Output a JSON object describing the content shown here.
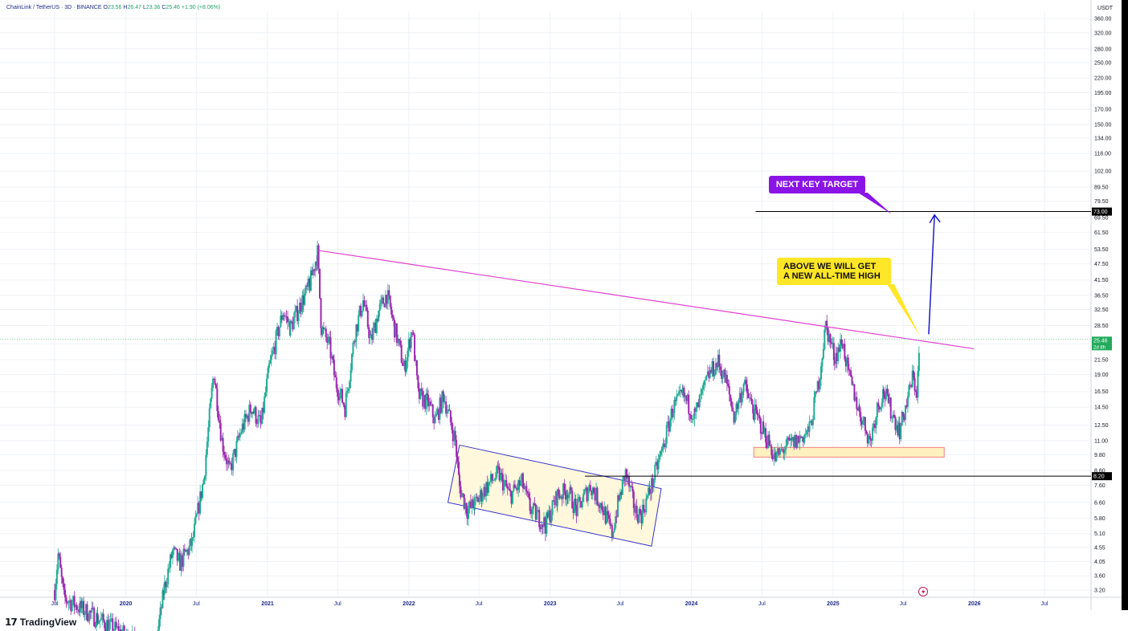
{
  "header": {
    "symbol": "ChainLink / TetherUS · 3D · BINANCE",
    "o_label": "O",
    "o": "23.56",
    "h_label": "H",
    "h": "26.47",
    "l_label": "L",
    "l": "23.36",
    "c_label": "C",
    "c": "25.46",
    "change": "+1.90 (+8.06%)"
  },
  "brand": {
    "mark": "𝟭𝟳",
    "name": "TradingView"
  },
  "annotations": {
    "next_key_target": "NEXT KEY TARGET",
    "ath_line1": "ABOVE WE WILL GET",
    "ath_line2": "A NEW ALL-TIME HIGH",
    "target_price_tag": "73.00",
    "support_price_tag": "8.20",
    "current_price_tag": "25.46",
    "countdown_tag": "2d 8h"
  },
  "colors": {
    "up": "#22ab94",
    "down": "#9c27b0",
    "trendline": "#e040d0",
    "arrow": "#1a1acc",
    "channel_fill": "#fff8dc",
    "channel_stroke": "#3333cc",
    "support_zone_fill": "#fff0c0",
    "support_zone_stroke": "#f08080",
    "callout_purple": "#8a14e6",
    "callout_yellow": "#ffe626"
  },
  "chart_data": {
    "type": "candlestick",
    "symbol": "LINK/USDT",
    "timeframe": "3D",
    "exchange": "BINANCE",
    "y_scale": "log",
    "ylabel": "USDT",
    "y_ticks": [
      3.2,
      3.6,
      4.05,
      4.55,
      5.1,
      5.8,
      6.6,
      7.6,
      8.6,
      9.8,
      11.0,
      12.5,
      14.5,
      16.5,
      19.0,
      21.5,
      24.5,
      28.5,
      32.5,
      36.5,
      41.5,
      47.5,
      53.5,
      61.5,
      69.5,
      79.5,
      89.5,
      102.0,
      118.0,
      134.0,
      150.0,
      170.0,
      195.0,
      220.0,
      250.0,
      280.0,
      320.0,
      360.0
    ],
    "y_tick_labels": [
      "3.20",
      "3.60",
      "4.05",
      "4.55",
      "5.10",
      "5.80",
      "6.60",
      "7.60",
      "8.60",
      "9.80",
      "11.00",
      "12.50",
      "14.50",
      "16.50",
      "19.00",
      "21.50",
      "24.50",
      "28.50",
      "32.50",
      "36.50",
      "41.50",
      "47.50",
      "53.50",
      "61.50",
      "69.50",
      "79.50",
      "89.50",
      "102.00",
      "118.00",
      "134.00",
      "150.00",
      "170.00",
      "195.00",
      "220.00",
      "250.00",
      "280.00",
      "320.00",
      "360.00"
    ],
    "x_ticks": [
      "2019-07-01",
      "2020-01-01",
      "2020-07-01",
      "2021-01-01",
      "2021-07-01",
      "2022-01-01",
      "2022-07-01",
      "2023-01-01",
      "2023-07-01",
      "2024-01-01",
      "2024-07-01",
      "2025-01-01",
      "2025-07-01",
      "2026-01-01",
      "2026-07-01"
    ],
    "x_tick_labels": [
      "Jul",
      "2020",
      "Jul",
      "2021",
      "Jul",
      "2022",
      "Jul",
      "2023",
      "Jul",
      "2024",
      "Jul",
      "2025",
      "Jul",
      "2026",
      "Jul"
    ],
    "price_path": [
      [
        "2019-07-01",
        3.2
      ],
      [
        "2019-07-10",
        4.3
      ],
      [
        "2019-07-25",
        3.0
      ],
      [
        "2020-03-15",
        1.9
      ],
      [
        "2020-04-10",
        3.3
      ],
      [
        "2020-05-01",
        4.4
      ],
      [
        "2020-05-20",
        4.0
      ],
      [
        "2020-06-20",
        4.7
      ],
      [
        "2020-07-20",
        8.0
      ],
      [
        "2020-08-15",
        19.5
      ],
      [
        "2020-09-05",
        11.0
      ],
      [
        "2020-09-25",
        8.5
      ],
      [
        "2020-10-25",
        12.0
      ],
      [
        "2020-11-20",
        14.5
      ],
      [
        "2020-12-15",
        12.5
      ],
      [
        "2021-01-05",
        20.0
      ],
      [
        "2021-02-10",
        32.0
      ],
      [
        "2021-03-01",
        28.0
      ],
      [
        "2021-04-01",
        35.0
      ],
      [
        "2021-04-20",
        40.0
      ],
      [
        "2021-05-10",
        52.0
      ],
      [
        "2021-05-20",
        28.0
      ],
      [
        "2021-06-10",
        24.0
      ],
      [
        "2021-06-25",
        18.0
      ],
      [
        "2021-07-20",
        14.5
      ],
      [
        "2021-08-15",
        27.0
      ],
      [
        "2021-09-05",
        35.0
      ],
      [
        "2021-09-25",
        25.0
      ],
      [
        "2021-10-15",
        32.0
      ],
      [
        "2021-11-05",
        37.0
      ],
      [
        "2021-11-25",
        28.0
      ],
      [
        "2021-12-20",
        20.0
      ],
      [
        "2022-01-10",
        28.0
      ],
      [
        "2022-01-25",
        16.0
      ],
      [
        "2022-02-20",
        15.0
      ],
      [
        "2022-03-10",
        13.0
      ],
      [
        "2022-04-01",
        16.0
      ],
      [
        "2022-05-01",
        11.0
      ],
      [
        "2022-05-12",
        7.5
      ],
      [
        "2022-06-01",
        6.2
      ],
      [
        "2022-06-20",
        6.5
      ],
      [
        "2022-07-20",
        7.5
      ],
      [
        "2022-08-20",
        8.4
      ],
      [
        "2022-09-20",
        7.0
      ],
      [
        "2022-10-20",
        7.8
      ],
      [
        "2022-11-10",
        6.3
      ],
      [
        "2022-12-20",
        5.5
      ],
      [
        "2023-01-20",
        7.0
      ],
      [
        "2023-02-15",
        7.3
      ],
      [
        "2023-03-10",
        6.2
      ],
      [
        "2023-04-15",
        7.6
      ],
      [
        "2023-05-15",
        6.4
      ],
      [
        "2023-06-10",
        5.1
      ],
      [
        "2023-06-25",
        6.5
      ],
      [
        "2023-07-15",
        8.4
      ],
      [
        "2023-08-10",
        6.1
      ],
      [
        "2023-08-25",
        6.0
      ],
      [
        "2023-09-20",
        7.6
      ],
      [
        "2023-10-20",
        10.5
      ],
      [
        "2023-11-15",
        14.5
      ],
      [
        "2023-12-10",
        16.0
      ],
      [
        "2024-01-10",
        13.5
      ],
      [
        "2024-02-15",
        19.0
      ],
      [
        "2024-03-10",
        21.0
      ],
      [
        "2024-03-30",
        18.0
      ],
      [
        "2024-04-20",
        13.5
      ],
      [
        "2024-05-15",
        17.5
      ],
      [
        "2024-06-10",
        14.0
      ],
      [
        "2024-07-05",
        12.0
      ],
      [
        "2024-08-05",
        9.5
      ],
      [
        "2024-09-01",
        10.5
      ],
      [
        "2024-10-01",
        11.0
      ],
      [
        "2024-11-01",
        12.0
      ],
      [
        "2024-11-25",
        18.0
      ],
      [
        "2024-12-13",
        28.5
      ],
      [
        "2025-01-05",
        22.0
      ],
      [
        "2025-01-25",
        25.0
      ],
      [
        "2025-02-10",
        19.0
      ],
      [
        "2025-03-10",
        14.0
      ],
      [
        "2025-04-07",
        11.0
      ],
      [
        "2025-04-25",
        14.5
      ],
      [
        "2025-05-12",
        16.5
      ],
      [
        "2025-06-05",
        13.5
      ],
      [
        "2025-06-22",
        12.0
      ],
      [
        "2025-07-10",
        15.0
      ],
      [
        "2025-07-25",
        18.5
      ],
      [
        "2025-08-05",
        16.5
      ],
      [
        "2025-08-14",
        25.46
      ]
    ],
    "last_close": 25.46,
    "drawings": {
      "descending_trendline": {
        "from": [
          "2021-05-10",
          53.0
        ],
        "to": [
          "2025-12-31",
          23.5
        ]
      },
      "channel": {
        "upper": [
          [
            "2022-05-12",
            10.6
          ],
          [
            "2023-10-15",
            7.4
          ]
        ],
        "lower": [
          [
            "2022-04-12",
            6.6
          ],
          [
            "2023-09-20",
            4.6
          ]
        ]
      },
      "support_zone": {
        "from": "2024-06-10",
        "to": "2025-10-15",
        "low": 9.6,
        "high": 10.4
      },
      "support_line": {
        "from": "2023-04-01",
        "value": 8.2
      },
      "target_line": {
        "from": "2024-06-15",
        "value": 73.0
      },
      "target_arrow": {
        "from": [
          "2025-09-05",
          26.5
        ],
        "to": [
          "2025-09-20",
          71.0
        ]
      },
      "callout_pointer_yellow": {
        "to": [
          "2025-08-14",
          26.0
        ]
      },
      "callout_pointer_purple": {
        "to": [
          "2025-06-01",
          71.5
        ]
      }
    }
  }
}
